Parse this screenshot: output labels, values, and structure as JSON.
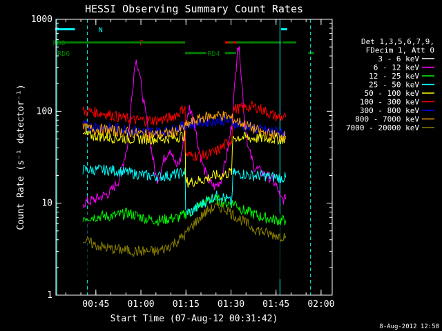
{
  "chart_data": {
    "type": "line",
    "title": "HESSI Observing Summary Count Rates",
    "ylabel": "Count Rate (s⁻¹ detector⁻¹)",
    "xlabel": "Start Time (07-Aug-12 00:31:42)",
    "x_unit": "minutes after 00:31:42",
    "xlim": [
      0,
      92
    ],
    "ylim": [
      1,
      1000
    ],
    "y_scale": "log",
    "x_ticks": [
      {
        "x": 13.3,
        "label": "00:45"
      },
      {
        "x": 28.3,
        "label": "01:00"
      },
      {
        "x": 43.3,
        "label": "01:15"
      },
      {
        "x": 58.3,
        "label": "01:30"
      },
      {
        "x": 73.3,
        "label": "01:45"
      },
      {
        "x": 88.3,
        "label": "02:00"
      }
    ],
    "y_ticks": [
      {
        "y": 1,
        "label": "1"
      },
      {
        "y": 10,
        "label": "10"
      },
      {
        "y": 100,
        "label": "100"
      },
      {
        "y": 1000,
        "label": "1000"
      }
    ],
    "legend_header": [
      "Det 1,3,5,6,7,9,",
      "FDecim 1, Att 0"
    ],
    "legend_position": "right",
    "series": [
      {
        "name": "3 - 6 keV",
        "color": "#000000",
        "points": [
          [
            9,
            1.5
          ],
          [
            10.5,
            1.5
          ],
          [
            10.6,
            8
          ],
          [
            15,
            8
          ],
          [
            20,
            8
          ],
          [
            22,
            10
          ],
          [
            24,
            30
          ],
          [
            25.5,
            120
          ],
          [
            26.5,
            260
          ],
          [
            27.5,
            200
          ],
          [
            29,
            110
          ],
          [
            31,
            50
          ],
          [
            33,
            22
          ],
          [
            34,
            16
          ],
          [
            36,
            20
          ],
          [
            38,
            25
          ],
          [
            40,
            28
          ],
          [
            42,
            35
          ],
          [
            44,
            60
          ],
          [
            46,
            90
          ],
          [
            48,
            70
          ],
          [
            50,
            40
          ],
          [
            52,
            25
          ],
          [
            54,
            20
          ],
          [
            56,
            30
          ],
          [
            58,
            60
          ],
          [
            59.5,
            150
          ],
          [
            60.5,
            500
          ],
          [
            61.3,
            320
          ],
          [
            62.3,
            90
          ],
          [
            63.5,
            30
          ],
          [
            65,
            20
          ],
          [
            67,
            15
          ],
          [
            69,
            12
          ],
          [
            71,
            10
          ],
          [
            73,
            9
          ],
          [
            74.5,
            7
          ],
          [
            74.6,
            1.5
          ],
          [
            76.5,
            1.5
          ]
        ]
      },
      {
        "name": "6 - 12 keV",
        "color": "#ff00ff",
        "points": [
          [
            9,
            10
          ],
          [
            13,
            11
          ],
          [
            18,
            13
          ],
          [
            21,
            18
          ],
          [
            24,
            45
          ],
          [
            25.5,
            180
          ],
          [
            26.5,
            370
          ],
          [
            27.5,
            300
          ],
          [
            29,
            140
          ],
          [
            30.5,
            70
          ],
          [
            32,
            35
          ],
          [
            33.5,
            18
          ],
          [
            34.5,
            20
          ],
          [
            36,
            30
          ],
          [
            38,
            40
          ],
          [
            40,
            25
          ],
          [
            41.5,
            30
          ],
          [
            43,
            60
          ],
          [
            44.5,
            110
          ],
          [
            46,
            80
          ],
          [
            47.5,
            40
          ],
          [
            49,
            25
          ],
          [
            51,
            17
          ],
          [
            53,
            15
          ],
          [
            55,
            18
          ],
          [
            57,
            35
          ],
          [
            58.5,
            70
          ],
          [
            59.5,
            180
          ],
          [
            60.5,
            540
          ],
          [
            61.3,
            400
          ],
          [
            62.5,
            110
          ],
          [
            64,
            40
          ],
          [
            66,
            25
          ],
          [
            68,
            22
          ],
          [
            70,
            20
          ],
          [
            72,
            18
          ],
          [
            74,
            14
          ],
          [
            74.6,
            11
          ],
          [
            76.5,
            11
          ]
        ]
      },
      {
        "name": "12 - 25 keV",
        "color": "#00ff00",
        "points": [
          [
            9,
            7
          ],
          [
            15,
            7.2
          ],
          [
            20,
            7.3
          ],
          [
            24,
            7.8
          ],
          [
            27,
            7.3
          ],
          [
            30,
            6.8
          ],
          [
            34,
            6.5
          ],
          [
            38,
            6.8
          ],
          [
            41,
            7
          ],
          [
            43,
            7.6
          ],
          [
            45,
            8
          ],
          [
            47,
            9
          ],
          [
            49,
            10
          ],
          [
            51,
            11
          ],
          [
            53,
            11
          ],
          [
            55,
            10.5
          ],
          [
            57,
            10
          ],
          [
            58.5,
            10
          ],
          [
            60,
            10
          ],
          [
            61,
            9
          ],
          [
            63,
            8.2
          ],
          [
            66,
            7.6
          ],
          [
            69,
            7
          ],
          [
            72,
            6.7
          ],
          [
            74.5,
            6.5
          ],
          [
            74.6,
            6.5
          ],
          [
            76.5,
            6.5
          ]
        ]
      },
      {
        "name": "25 - 50 keV",
        "color": "#00ffff",
        "points": [
          [
            9,
            23
          ],
          [
            13,
            23
          ],
          [
            18,
            23
          ],
          [
            22,
            22
          ],
          [
            26,
            21
          ],
          [
            30,
            20
          ],
          [
            34,
            19.5
          ],
          [
            38,
            20
          ],
          [
            41,
            21
          ],
          [
            43,
            22
          ],
          [
            43.2,
            8
          ],
          [
            45,
            8
          ],
          [
            47,
            9
          ],
          [
            49,
            10
          ],
          [
            51,
            11
          ],
          [
            53,
            12
          ],
          [
            55,
            12
          ],
          [
            57,
            11
          ],
          [
            58.5,
            10
          ],
          [
            59,
            21
          ],
          [
            62,
            21
          ],
          [
            65,
            20
          ],
          [
            68,
            20
          ],
          [
            71,
            19.5
          ],
          [
            74.5,
            19
          ],
          [
            74.6,
            19
          ],
          [
            76.5,
            19
          ]
        ]
      },
      {
        "name": "50 - 100 keV",
        "color": "#ffff00",
        "points": [
          [
            9,
            55
          ],
          [
            13,
            54
          ],
          [
            18,
            52
          ],
          [
            22,
            51
          ],
          [
            26,
            50
          ],
          [
            30,
            50
          ],
          [
            34,
            50
          ],
          [
            38,
            51
          ],
          [
            41,
            53
          ],
          [
            43,
            55
          ],
          [
            43.2,
            17
          ],
          [
            45,
            17
          ],
          [
            47,
            17.5
          ],
          [
            49,
            18
          ],
          [
            51,
            19
          ],
          [
            53,
            20
          ],
          [
            55,
            20
          ],
          [
            57,
            21
          ],
          [
            58.5,
            22
          ],
          [
            59,
            52
          ],
          [
            62,
            52
          ],
          [
            65,
            51
          ],
          [
            68,
            51
          ],
          [
            71,
            50
          ],
          [
            74.5,
            50
          ],
          [
            74.6,
            50
          ],
          [
            76.5,
            50
          ]
        ]
      },
      {
        "name": "100 - 300 keV",
        "color": "#ff0000",
        "points": [
          [
            9,
            100
          ],
          [
            13,
            98
          ],
          [
            18,
            92
          ],
          [
            22,
            85
          ],
          [
            26,
            80
          ],
          [
            30,
            80
          ],
          [
            34,
            80
          ],
          [
            38,
            85
          ],
          [
            41,
            95
          ],
          [
            43,
            115
          ],
          [
            43.2,
            34
          ],
          [
            45,
            33
          ],
          [
            47,
            33
          ],
          [
            49,
            33
          ],
          [
            51,
            34
          ],
          [
            53,
            36
          ],
          [
            55,
            40
          ],
          [
            57,
            45
          ],
          [
            58.5,
            48
          ],
          [
            59,
            105
          ],
          [
            62,
            108
          ],
          [
            65,
            112
          ],
          [
            67,
            110
          ],
          [
            69,
            103
          ],
          [
            71,
            95
          ],
          [
            73,
            88
          ],
          [
            74.5,
            86
          ],
          [
            74.6,
            86
          ],
          [
            76.5,
            86
          ]
        ]
      },
      {
        "name": "300 - 800 keV",
        "color": "#0000ff",
        "points": [
          [
            9,
            70
          ],
          [
            13,
            68
          ],
          [
            18,
            66
          ],
          [
            22,
            64
          ],
          [
            26,
            62
          ],
          [
            30,
            60
          ],
          [
            34,
            60
          ],
          [
            38,
            62
          ],
          [
            41,
            66
          ],
          [
            43,
            70
          ],
          [
            45,
            72
          ],
          [
            47,
            74
          ],
          [
            49,
            76
          ],
          [
            51,
            78
          ],
          [
            53,
            80
          ],
          [
            55,
            80
          ],
          [
            57,
            79
          ],
          [
            59,
            75
          ],
          [
            62,
            70
          ],
          [
            65,
            66
          ],
          [
            68,
            63
          ],
          [
            71,
            61
          ],
          [
            74.5,
            60
          ],
          [
            74.6,
            60
          ],
          [
            76.5,
            60
          ]
        ]
      },
      {
        "name": "800 - 7000 keV",
        "color": "#ffa500",
        "points": [
          [
            9,
            65
          ],
          [
            13,
            64
          ],
          [
            18,
            62
          ],
          [
            22,
            60
          ],
          [
            26,
            58
          ],
          [
            30,
            56
          ],
          [
            34,
            56
          ],
          [
            38,
            58
          ],
          [
            41,
            62
          ],
          [
            43,
            68
          ],
          [
            45,
            75
          ],
          [
            47,
            80
          ],
          [
            49,
            85
          ],
          [
            51,
            88
          ],
          [
            53,
            90
          ],
          [
            55,
            90
          ],
          [
            57,
            88
          ],
          [
            59,
            82
          ],
          [
            62,
            74
          ],
          [
            65,
            66
          ],
          [
            68,
            60
          ],
          [
            71,
            56
          ],
          [
            74.5,
            54
          ],
          [
            74.6,
            54
          ],
          [
            76.5,
            54
          ]
        ]
      },
      {
        "name": "7000 - 20000 keV",
        "color": "#8b8000",
        "points": [
          [
            9,
            4
          ],
          [
            13,
            3.5
          ],
          [
            18,
            3.2
          ],
          [
            22,
            3.1
          ],
          [
            26,
            3
          ],
          [
            30,
            3
          ],
          [
            34,
            3
          ],
          [
            37,
            3.3
          ],
          [
            40,
            3.8
          ],
          [
            43,
            4.5
          ],
          [
            45,
            5.5
          ],
          [
            47,
            6.5
          ],
          [
            49,
            7.5
          ],
          [
            51,
            8.5
          ],
          [
            53,
            9
          ],
          [
            55,
            9
          ],
          [
            57,
            8.5
          ],
          [
            59,
            7.5
          ],
          [
            62,
            6.5
          ],
          [
            65,
            5.5
          ],
          [
            68,
            5
          ],
          [
            71,
            4.6
          ],
          [
            74.5,
            4.4
          ],
          [
            74.6,
            4.4
          ],
          [
            76.5,
            4.4
          ]
        ]
      }
    ],
    "annotations": {
      "flags": [
        {
          "label": "N",
          "color": "#00ffff",
          "y": 780,
          "segments": [
            [
              -2,
              6.3
            ],
            [
              75,
              77
            ]
          ],
          "label_x": 14.2
        },
        {
          "label": "F",
          "color": "#ff0000",
          "y": 560,
          "segments": [
            [
              30,
              43
            ],
            [
              56.3,
              62
            ],
            [
              64.5,
              66
            ]
          ],
          "label_x": 27.8
        },
        {
          "label": "RD0",
          "color": "#008000",
          "y": 560,
          "segments": [
            [
              -2,
              43
            ],
            [
              57.5,
              59
            ],
            [
              60,
              75
            ],
            [
              75.5,
              80
            ]
          ],
          "label_x": -1
        },
        {
          "label": "RD4",
          "color": "#008000",
          "y": 430,
          "segments": [
            [
              43,
              50
            ],
            [
              56.3,
              60
            ]
          ],
          "label_x": 50.5
        },
        {
          "label": "RD6",
          "color": "#008000",
          "y": 430,
          "segments": [
            [
              -2,
              -0.5
            ],
            [
              84,
              86
            ]
          ],
          "label_x": 0.5
        }
      ],
      "vertical_lines": [
        {
          "x": 0.3,
          "color": "#00ffff",
          "style": "solid"
        },
        {
          "x": 10.5,
          "color": "#00ffff",
          "style": "dashed"
        },
        {
          "x": 74.6,
          "color": "#00ffff",
          "style": "solid"
        },
        {
          "x": 84.8,
          "color": "#00ffff",
          "style": "dashed"
        }
      ]
    }
  },
  "footer": {
    "timestamp": "8-Aug-2012 12:50"
  }
}
